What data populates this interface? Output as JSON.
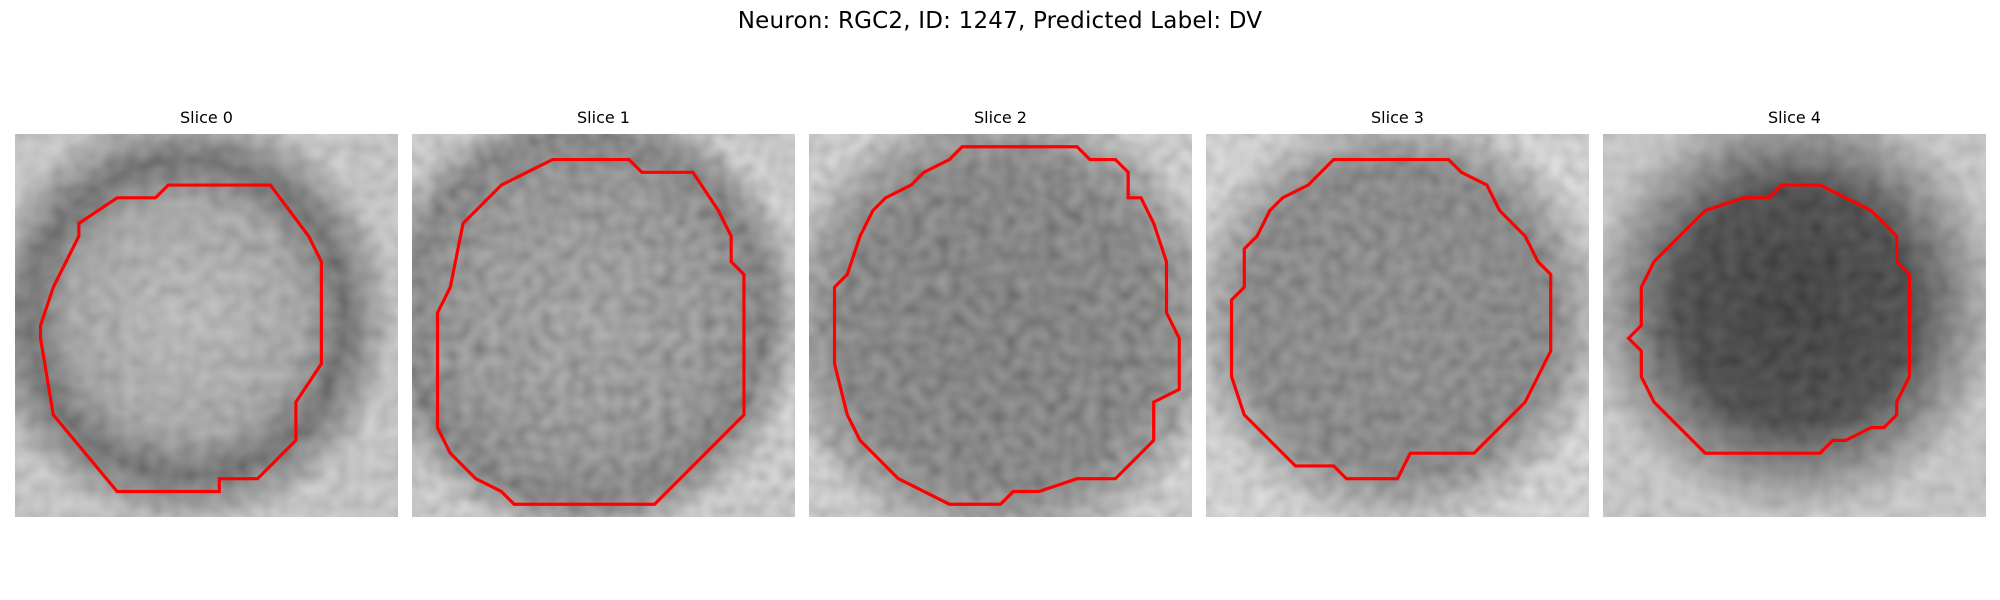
{
  "figure": {
    "title": "Neuron: RGC2, ID: 1247, Predicted Label: DV",
    "outline_color": "#ff0000"
  },
  "panels": [
    {
      "title": "Slice 0"
    },
    {
      "title": "Slice 1"
    },
    {
      "title": "Slice 2"
    },
    {
      "title": "Slice 3"
    },
    {
      "title": "Slice 4"
    }
  ]
}
